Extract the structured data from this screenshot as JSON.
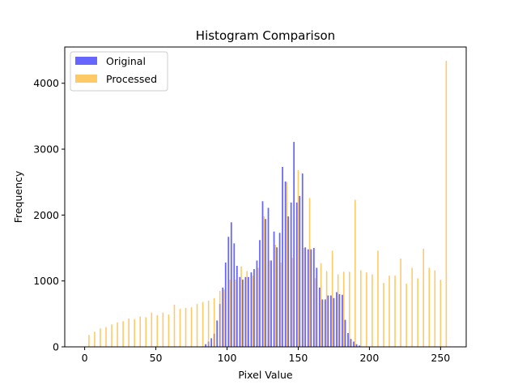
{
  "chart_data": {
    "type": "bar",
    "title": "Histogram Comparison",
    "xlabel": "Pixel Value",
    "ylabel": "Frequency",
    "xlim": [
      -14,
      268
    ],
    "ylim": [
      0,
      4550
    ],
    "xticks": [
      0,
      50,
      100,
      150,
      200,
      250
    ],
    "yticks": [
      0,
      1000,
      2000,
      3000,
      4000
    ],
    "grid": false,
    "legend_position": "top-left",
    "series": [
      {
        "name": "Original",
        "color": "#0000ff",
        "opacity": 0.6,
        "x": [
          85,
          87,
          89,
          91,
          93,
          95,
          97,
          99,
          101,
          103,
          105,
          107,
          109,
          111,
          113,
          115,
          117,
          119,
          121,
          123,
          125,
          127,
          129,
          131,
          133,
          135,
          137,
          139,
          141,
          143,
          145,
          147,
          149,
          151,
          153,
          155,
          157,
          159,
          161,
          163,
          165,
          167,
          169,
          171,
          173,
          175,
          177,
          179,
          181,
          183,
          185,
          187,
          189,
          191,
          193
        ],
        "values": [
          40,
          80,
          130,
          200,
          400,
          650,
          900,
          1280,
          1670,
          1890,
          1570,
          1230,
          1060,
          1020,
          1060,
          1060,
          1130,
          1180,
          1310,
          1620,
          2210,
          1940,
          2110,
          1310,
          1750,
          1510,
          1730,
          2730,
          2510,
          1980,
          2190,
          3110,
          2190,
          2290,
          2630,
          1510,
          1480,
          1480,
          1500,
          1200,
          900,
          720,
          720,
          780,
          780,
          740,
          830,
          800,
          790,
          410,
          210,
          120,
          80,
          40,
          20
        ]
      },
      {
        "name": "Processed",
        "color": "#ffa500",
        "opacity": 0.6,
        "x": [
          3,
          7,
          11,
          15,
          19,
          23,
          27,
          31,
          35,
          39,
          43,
          47,
          51,
          55,
          59,
          63,
          67,
          71,
          75,
          79,
          83,
          87,
          91,
          95,
          98,
          102,
          106,
          110,
          114,
          118,
          122,
          126,
          130,
          134,
          138,
          142,
          146,
          150,
          154,
          158,
          162,
          166,
          170,
          174,
          178,
          182,
          186,
          190,
          194,
          198,
          202,
          206,
          210,
          214,
          218,
          222,
          226,
          230,
          234,
          238,
          242,
          246,
          250,
          254
        ],
        "values": [
          180,
          230,
          280,
          300,
          340,
          370,
          390,
          430,
          420,
          460,
          450,
          520,
          480,
          520,
          490,
          640,
          580,
          590,
          600,
          650,
          680,
          700,
          740,
          850,
          870,
          1020,
          1020,
          1220,
          1150,
          1080,
          1200,
          1980,
          1310,
          1550,
          1280,
          2500,
          1350,
          2680,
          1500,
          2260,
          1040,
          1270,
          1150,
          1460,
          1100,
          1140,
          1140,
          2230,
          1160,
          1130,
          1100,
          1460,
          970,
          1080,
          1080,
          1340,
          960,
          1200,
          1040,
          1490,
          1200,
          1160,
          1020,
          4340
        ]
      }
    ]
  }
}
